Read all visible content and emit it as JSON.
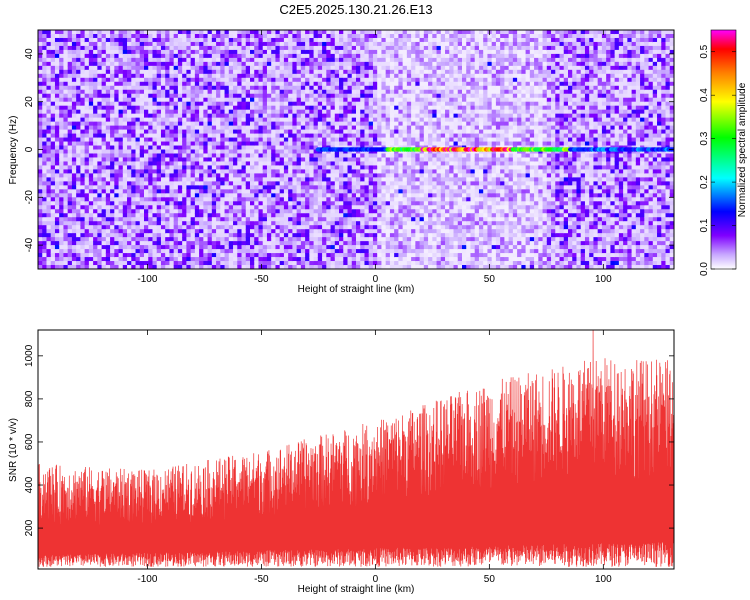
{
  "title": "C2E5.2025.130.21.26.E13",
  "chart_data": [
    {
      "type": "heatmap",
      "xlabel": "Height of straight line (km)",
      "ylabel": "Frequency (Hz)",
      "xlim": [
        -148,
        131
      ],
      "ylim": [
        -50,
        50
      ],
      "xticks": [
        -100,
        -50,
        0,
        50,
        100
      ],
      "yticks": [
        -40,
        -20,
        0,
        20,
        40
      ],
      "colorbar": {
        "label": "Normalized spectral amplitude",
        "range": [
          0,
          0.55
        ],
        "ticks": [
          0.0,
          0.1,
          0.2,
          0.3,
          0.4,
          0.5
        ],
        "colors": [
          "#ffffff",
          "#7f00ff",
          "#0000ff",
          "#00ffff",
          "#00ff00",
          "#ffff00",
          "#ff8000",
          "#ff0000",
          "#ff00ff"
        ]
      },
      "background_level": 0.06,
      "signal_band": {
        "frequency": 0,
        "x_start": -25,
        "x_end": 131,
        "peak_amplitude": 0.55,
        "peak_range": [
          20,
          60
        ]
      },
      "grid": false
    },
    {
      "type": "area",
      "xlabel": "Height of straight line (km)",
      "ylabel": "SNR (10 * v/v)",
      "xlim": [
        -148,
        131
      ],
      "ylim": [
        10,
        1120
      ],
      "xticks": [
        -100,
        -50,
        0,
        50,
        100
      ],
      "yticks": [
        200,
        400,
        600,
        800,
        1000
      ],
      "color": "#ee3333",
      "upper_envelope_km": [
        -148,
        -100,
        -50,
        0,
        50,
        100,
        131
      ],
      "upper_envelope_snr": [
        500,
        470,
        560,
        700,
        880,
        1000,
        980
      ],
      "max_peak": 1120,
      "grid": false
    }
  ]
}
